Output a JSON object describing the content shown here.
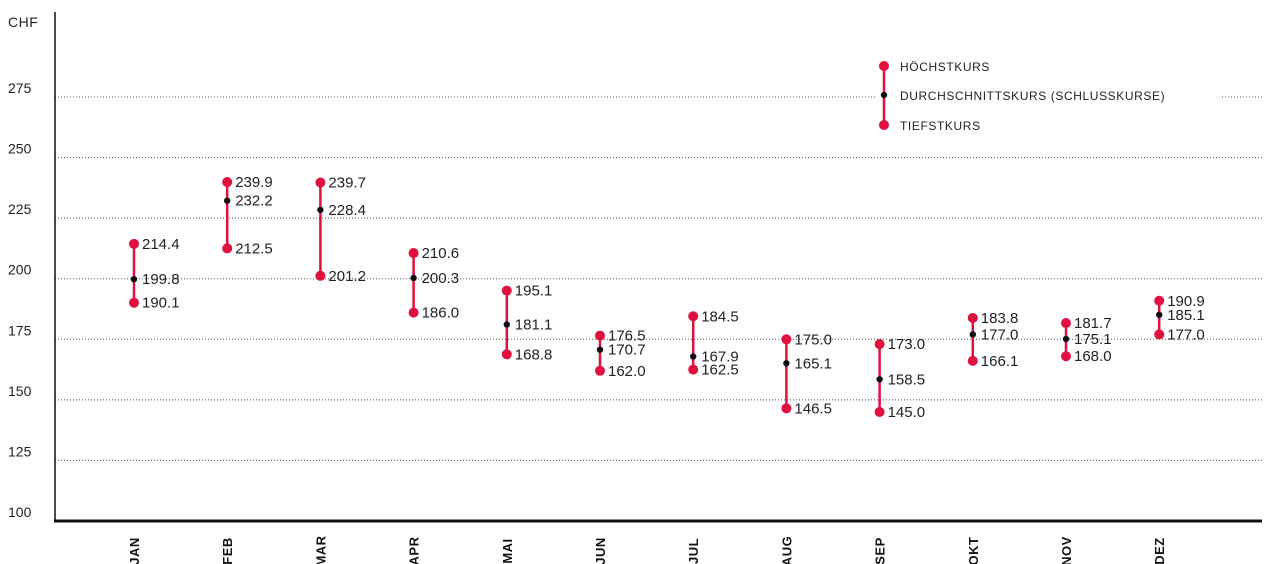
{
  "chart_data": {
    "type": "range",
    "unit_label": "CHF",
    "ylim": [
      100,
      290
    ],
    "y_ticks": [
      100,
      125,
      150,
      175,
      200,
      225,
      250,
      275
    ],
    "grid": true,
    "colors": {
      "range": "#e0103f",
      "mean": "#111111"
    },
    "categories": [
      "JAN",
      "FEB",
      "MAR",
      "APR",
      "MAI",
      "JUN",
      "JUL",
      "AUG",
      "SEP",
      "OKT",
      "NOV",
      "DEZ"
    ],
    "series": [
      {
        "name": "HÖCHSTKURS",
        "values": [
          214.4,
          239.9,
          239.7,
          210.6,
          195.1,
          176.5,
          184.5,
          175.0,
          173.0,
          183.8,
          181.7,
          190.9
        ]
      },
      {
        "name": "DURCHSCHNITTSKURS (SCHLUSSKURSE)",
        "values": [
          199.8,
          232.2,
          228.4,
          200.3,
          181.1,
          170.7,
          167.9,
          165.1,
          158.5,
          177.0,
          175.1,
          185.1
        ]
      },
      {
        "name": "TIEFSTKURS",
        "values": [
          190.1,
          212.5,
          201.2,
          186.0,
          168.8,
          162.0,
          162.5,
          146.5,
          145.0,
          166.1,
          168.0,
          177.0
        ]
      }
    ],
    "labels": {
      "high": [
        "214.4",
        "239.9",
        "239.7",
        "210.6",
        "195.1",
        "176.5",
        "184.5",
        "175.0",
        "173.0",
        "183.8",
        "181.7",
        "190.9"
      ],
      "mean": [
        "199.8",
        "232.2",
        "228.4",
        "200.3",
        "181.1",
        "170.7",
        "167.9",
        "165.1",
        "158.5",
        "177.0",
        "175.1",
        "185.1"
      ],
      "low": [
        "190.1",
        "212.5",
        "201.2",
        "186.0",
        "168.8",
        "162.0",
        "162.5",
        "146.5",
        "145.0",
        "166.1",
        "168.0",
        "177.0"
      ]
    },
    "legend": {
      "placement": "top-right",
      "high_label": "HÖCHSTKURS",
      "mean_label": "DURCHSCHNITTSKURS (SCHLUSSKURSE)",
      "low_label": "TIEFSTKURS"
    }
  }
}
